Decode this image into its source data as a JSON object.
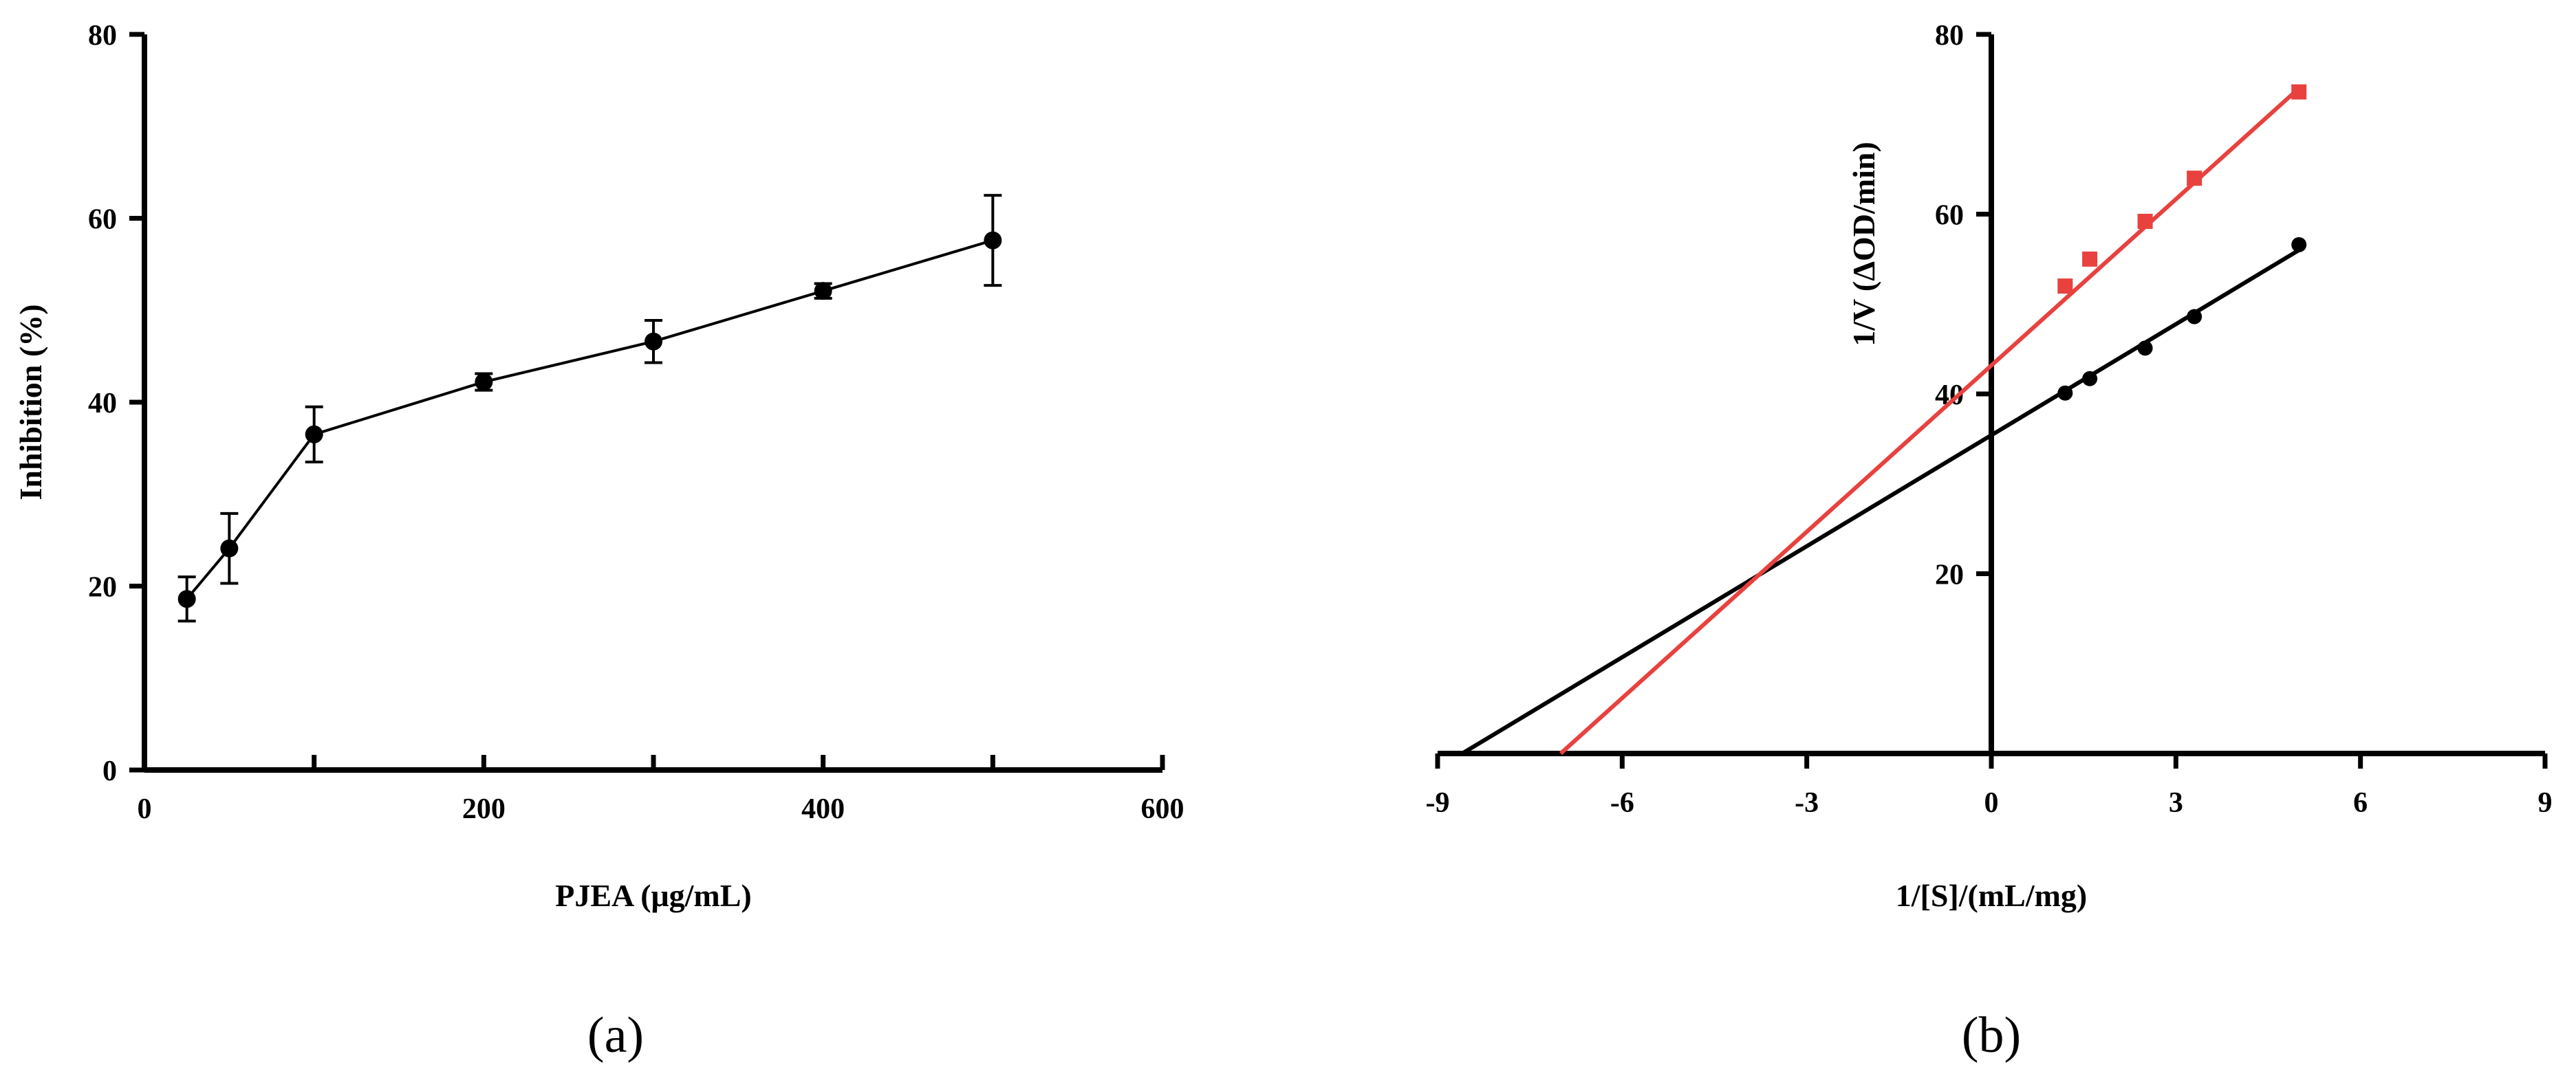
{
  "chart_data": [
    {
      "panel": "(a)",
      "type": "line",
      "xlabel": "PJEA (μg/mL)",
      "ylabel": "Inhibition (%)",
      "xlim": [
        0,
        600
      ],
      "ylim": [
        0,
        80
      ],
      "xticks": [
        0,
        200,
        400,
        600
      ],
      "yticks": [
        0,
        20,
        40,
        60,
        80
      ],
      "minor_xticks": [
        100,
        300,
        500
      ],
      "series": [
        {
          "color": "#000000",
          "marker": "circle",
          "x": [
            25,
            50,
            100,
            200,
            300,
            400,
            500
          ],
          "y": [
            18.6,
            24.1,
            36.5,
            42.2,
            46.6,
            52.1,
            57.6
          ],
          "error": [
            2.4,
            3.8,
            3.0,
            0.9,
            2.3,
            0.8,
            4.9
          ]
        }
      ]
    },
    {
      "panel": "(b)",
      "type": "scatter",
      "xlabel": "1/[S]/(mL/mg)",
      "ylabel": "1/V (ΔOD/min)",
      "xlim": [
        -9,
        9
      ],
      "ylim": [
        0,
        80
      ],
      "xticks": [
        -9,
        -6,
        -3,
        0,
        3,
        6,
        9
      ],
      "yticks": [
        20,
        40,
        60,
        80
      ],
      "series": [
        {
          "color": "#000000",
          "marker": "circle",
          "x": [
            1.2,
            1.6,
            2.5,
            3.3,
            5.0
          ],
          "y": [
            40.1,
            41.7,
            45.1,
            48.6,
            56.6
          ],
          "fit_line": {
            "x": [
              -8.6,
              5.0
            ],
            "y": [
              0,
              56.0
            ]
          }
        },
        {
          "color": "#e8413e",
          "marker": "square",
          "x": [
            1.2,
            1.6,
            2.5,
            3.3,
            5.0
          ],
          "y": [
            52.0,
            55.0,
            59.2,
            64.0,
            73.6
          ],
          "fit_line": {
            "x": [
              -7.0,
              5.0
            ],
            "y": [
              0,
              74.0
            ]
          }
        }
      ]
    }
  ]
}
